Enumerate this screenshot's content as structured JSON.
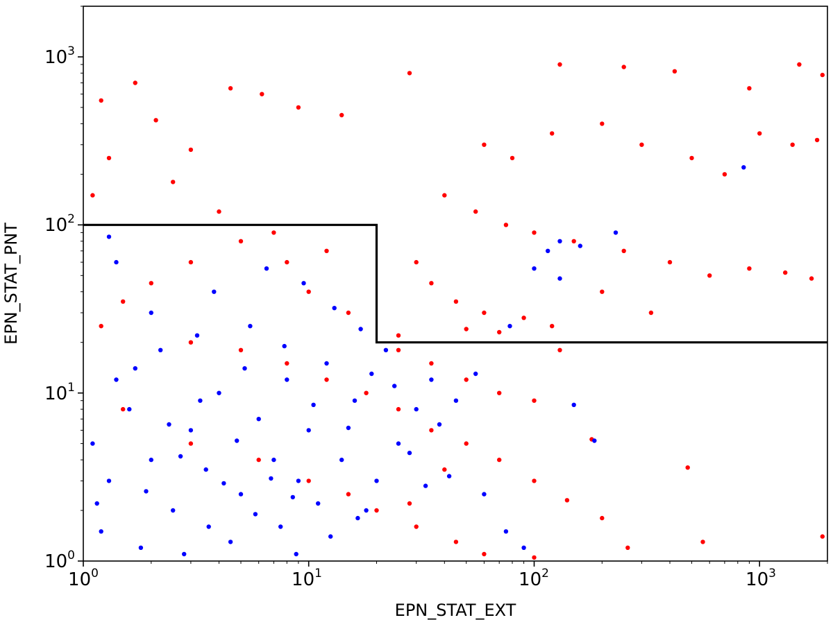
{
  "chart_data": {
    "type": "scatter",
    "title": "",
    "xlabel": "EPN_STAT_EXT",
    "ylabel": "EPN_STAT_PNT",
    "xscale": "log",
    "yscale": "log",
    "xlim": [
      1,
      2000
    ],
    "ylim": [
      1,
      2000
    ],
    "grid": false,
    "legend": "none",
    "x_ticks": [
      {
        "base": "10",
        "exp": "0",
        "value": 1
      },
      {
        "base": "10",
        "exp": "1",
        "value": 10
      },
      {
        "base": "10",
        "exp": "2",
        "value": 100
      },
      {
        "base": "10",
        "exp": "3",
        "value": 1000
      }
    ],
    "y_ticks": [
      {
        "base": "10",
        "exp": "0",
        "value": 1
      },
      {
        "base": "10",
        "exp": "1",
        "value": 10
      },
      {
        "base": "10",
        "exp": "2",
        "value": 100
      },
      {
        "base": "10",
        "exp": "3",
        "value": 1000
      }
    ],
    "selection_boundary": {
      "color": "#000000",
      "x": [
        1,
        20,
        20,
        2000
      ],
      "y": [
        100,
        100,
        20,
        20
      ]
    },
    "series": [
      {
        "color": "#ff0000",
        "points": [
          [
            1.2,
            550
          ],
          [
            1.7,
            700
          ],
          [
            2.1,
            420
          ],
          [
            3.0,
            280
          ],
          [
            4.5,
            650
          ],
          [
            6.2,
            600
          ],
          [
            9.0,
            500
          ],
          [
            14,
            450
          ],
          [
            28,
            800
          ],
          [
            130,
            900
          ],
          [
            250,
            870
          ],
          [
            420,
            820
          ],
          [
            900,
            650
          ],
          [
            1500,
            900
          ],
          [
            1900,
            780
          ],
          [
            60,
            300
          ],
          [
            80,
            250
          ],
          [
            120,
            350
          ],
          [
            200,
            400
          ],
          [
            300,
            300
          ],
          [
            500,
            250
          ],
          [
            700,
            200
          ],
          [
            1000,
            350
          ],
          [
            1400,
            300
          ],
          [
            1800,
            320
          ],
          [
            40,
            150
          ],
          [
            55,
            120
          ],
          [
            75,
            100
          ],
          [
            100,
            90
          ],
          [
            150,
            80
          ],
          [
            250,
            70
          ],
          [
            400,
            60
          ],
          [
            600,
            50
          ],
          [
            900,
            55
          ],
          [
            1300,
            52
          ],
          [
            1700,
            48
          ],
          [
            30,
            60
          ],
          [
            35,
            45
          ],
          [
            45,
            35
          ],
          [
            60,
            30
          ],
          [
            90,
            28
          ],
          [
            120,
            25
          ],
          [
            200,
            40
          ],
          [
            330,
            30
          ],
          [
            25,
            22
          ],
          [
            50,
            24
          ],
          [
            70,
            23
          ],
          [
            25,
            18
          ],
          [
            35,
            15
          ],
          [
            50,
            12
          ],
          [
            70,
            10
          ],
          [
            100,
            9
          ],
          [
            130,
            18
          ],
          [
            15,
            30
          ],
          [
            10,
            40
          ],
          [
            8,
            60
          ],
          [
            5,
            80
          ],
          [
            3,
            60
          ],
          [
            2,
            45
          ],
          [
            1.5,
            35
          ],
          [
            1.2,
            25
          ],
          [
            1.1,
            150
          ],
          [
            1.3,
            250
          ],
          [
            2.5,
            180
          ],
          [
            4,
            120
          ],
          [
            7,
            90
          ],
          [
            12,
            70
          ],
          [
            3,
            20
          ],
          [
            5,
            18
          ],
          [
            8,
            15
          ],
          [
            12,
            12
          ],
          [
            18,
            10
          ],
          [
            25,
            8
          ],
          [
            35,
            6
          ],
          [
            50,
            5
          ],
          [
            70,
            4
          ],
          [
            100,
            3
          ],
          [
            140,
            2.3
          ],
          [
            200,
            1.8
          ],
          [
            1.5,
            8
          ],
          [
            3,
            5
          ],
          [
            6,
            4
          ],
          [
            10,
            3
          ],
          [
            15,
            2.5
          ],
          [
            20,
            2
          ],
          [
            30,
            1.6
          ],
          [
            45,
            1.3
          ],
          [
            60,
            1.1
          ],
          [
            100,
            1.05
          ],
          [
            180,
            5.3
          ],
          [
            480,
            3.6
          ],
          [
            560,
            1.3
          ],
          [
            1900,
            1.4
          ],
          [
            260,
            1.2
          ],
          [
            28,
            2.2
          ],
          [
            40,
            3.5
          ]
        ]
      },
      {
        "color": "#0000ff",
        "points": [
          [
            1.1,
            5
          ],
          [
            1.3,
            3
          ],
          [
            1.6,
            8
          ],
          [
            2.0,
            4
          ],
          [
            2.5,
            2
          ],
          [
            3.0,
            6
          ],
          [
            3.5,
            3.5
          ],
          [
            4.0,
            10
          ],
          [
            5.0,
            2.5
          ],
          [
            6.0,
            7
          ],
          [
            7.0,
            4
          ],
          [
            8.0,
            12
          ],
          [
            9.0,
            3
          ],
          [
            10,
            6
          ],
          [
            12,
            15
          ],
          [
            14,
            4
          ],
          [
            16,
            9
          ],
          [
            18,
            2
          ],
          [
            1.2,
            1.5
          ],
          [
            1.8,
            1.2
          ],
          [
            2.8,
            1.1
          ],
          [
            4.5,
            1.3
          ],
          [
            7.5,
            1.6
          ],
          [
            11,
            2.2
          ],
          [
            20,
            3
          ],
          [
            25,
            5
          ],
          [
            30,
            8
          ],
          [
            35,
            12
          ],
          [
            1.4,
            12
          ],
          [
            2.2,
            18
          ],
          [
            3.2,
            22
          ],
          [
            5.5,
            25
          ],
          [
            1.3,
            85
          ],
          [
            1.4,
            60
          ],
          [
            2.0,
            30
          ],
          [
            3.8,
            40
          ],
          [
            6.5,
            55
          ],
          [
            9.5,
            45
          ],
          [
            13,
            32
          ],
          [
            17,
            24
          ],
          [
            22,
            18
          ],
          [
            60,
            2.5
          ],
          [
            75,
            1.5
          ],
          [
            90,
            1.2
          ],
          [
            130,
            80
          ],
          [
            230,
            90
          ],
          [
            160,
            75
          ],
          [
            100,
            55
          ],
          [
            78,
            25
          ],
          [
            185,
            5.2
          ],
          [
            150,
            8.5
          ],
          [
            55,
            13
          ],
          [
            45,
            9
          ],
          [
            38,
            6.5
          ],
          [
            2.4,
            6.5
          ],
          [
            3.3,
            9
          ],
          [
            4.8,
            5.2
          ],
          [
            6.8,
            3.1
          ],
          [
            8.5,
            2.4
          ],
          [
            1.9,
            2.6
          ],
          [
            2.7,
            4.2
          ],
          [
            5.2,
            14
          ],
          [
            7.8,
            19
          ],
          [
            10.5,
            8.5
          ],
          [
            15,
            6.2
          ],
          [
            19,
            13
          ],
          [
            24,
            11
          ],
          [
            28,
            4.4
          ],
          [
            33,
            2.8
          ],
          [
            42,
            3.2
          ],
          [
            1.15,
            2.2
          ],
          [
            1.7,
            14
          ],
          [
            3.6,
            1.6
          ],
          [
            4.2,
            2.9
          ],
          [
            5.8,
            1.9
          ],
          [
            8.8,
            1.1
          ],
          [
            12.5,
            1.4
          ],
          [
            16.5,
            1.8
          ],
          [
            850,
            220
          ],
          [
            130,
            48
          ],
          [
            115,
            70
          ]
        ]
      }
    ]
  }
}
